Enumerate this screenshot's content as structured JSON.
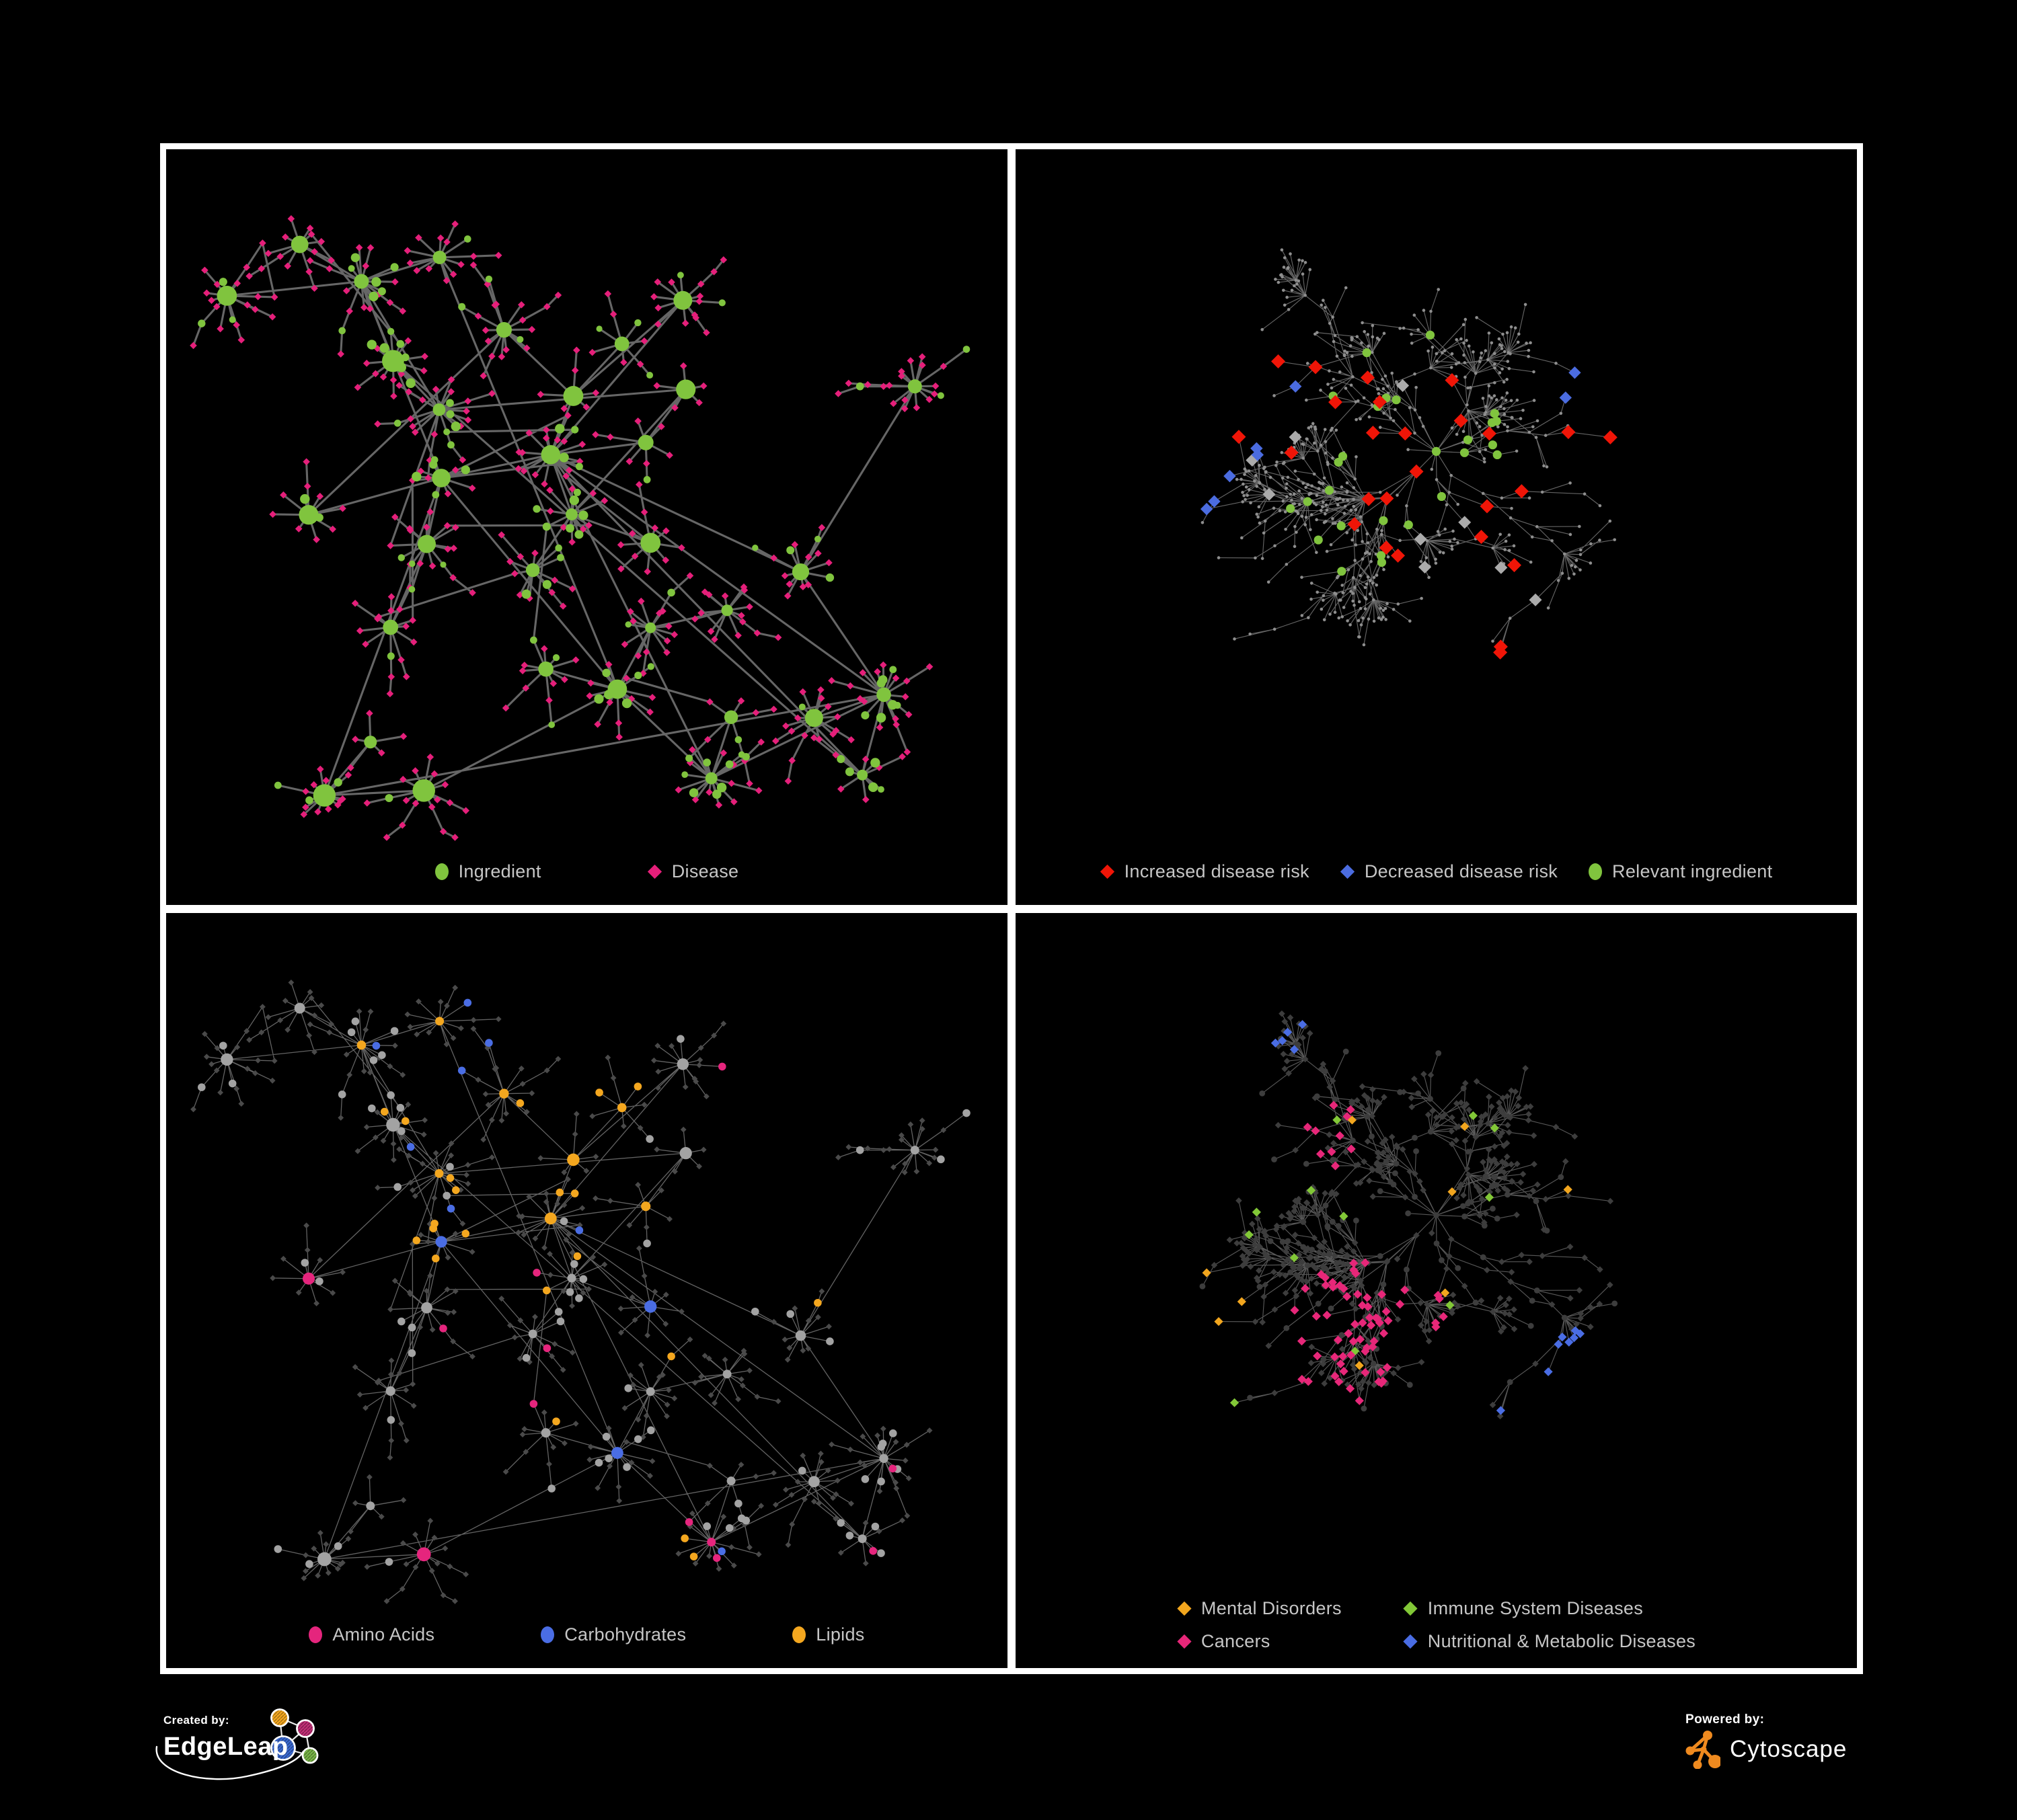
{
  "page": {
    "background": "#000000",
    "frame_color": "#ffffff"
  },
  "footer": {
    "created_by": "Created by:",
    "created_brand": "EdgeLeap",
    "powered_by": "Powered by:",
    "powered_brand": "Cytoscape"
  },
  "panels": [
    {
      "id": "ingredient-disease",
      "layout": "hairball",
      "seed": 7,
      "palette": {
        "ingredient": "#80c43e",
        "disease": "#e51f7a"
      },
      "edge": {
        "color": "#6b6b6b",
        "width": 3.1,
        "opacity": 0.95
      },
      "legend": {
        "style": "row-wide",
        "items": [
          {
            "label": "Ingredient",
            "shape": "circle",
            "color": "#80c43e"
          },
          {
            "label": "Disease",
            "shape": "diamond",
            "color": "#e51f7a"
          }
        ]
      }
    },
    {
      "id": "disease-risk",
      "layout": "tree",
      "seed": 23,
      "palette": {
        "increased": "#f01507",
        "decreased": "#4b6ce0",
        "neutral": "#ababab",
        "ingredient": "#80c43e",
        "base": "#8e8e8e"
      },
      "edge": {
        "color": "#6f6f6f",
        "width": 1.15,
        "opacity": 0.9
      },
      "legend": {
        "style": "row",
        "items": [
          {
            "label": "Increased disease risk",
            "shape": "diamond",
            "color": "#f01507"
          },
          {
            "label": "Decreased disease risk",
            "shape": "diamond",
            "color": "#4b6ce0"
          },
          {
            "label": "Relevant ingredient",
            "shape": "circle",
            "color": "#80c43e"
          }
        ]
      }
    },
    {
      "id": "nutrient-categories",
      "layout": "hairball",
      "seed": 7,
      "palette": {
        "amino": "#e5257d",
        "carb": "#4a6de4",
        "lipid": "#f4a71f",
        "base": "#a3a3a3",
        "disease": "#4a4a4a"
      },
      "edge": {
        "color": "#8d8d8d",
        "width": 1.3,
        "opacity": 0.7
      },
      "legend": {
        "style": "row-wide",
        "items": [
          {
            "label": "Amino Acids",
            "shape": "circle",
            "color": "#e5257d"
          },
          {
            "label": "Carbohydrates",
            "shape": "circle",
            "color": "#4a6de4"
          },
          {
            "label": "Lipids",
            "shape": "circle",
            "color": "#f4a71f"
          }
        ]
      }
    },
    {
      "id": "disease-categories",
      "layout": "tree",
      "seed": 23,
      "palette": {
        "mental": "#f2a61e",
        "immune": "#82c837",
        "cancer": "#e72779",
        "metabolic": "#4a6de4",
        "base": "#3d3d3d"
      },
      "edge": {
        "color": "#606060",
        "width": 1.15,
        "opacity": 0.9
      },
      "legend": {
        "style": "grid-2",
        "items": [
          {
            "label": "Mental Disorders",
            "shape": "diamond",
            "color": "#f2a61e"
          },
          {
            "label": "Immune System Diseases",
            "shape": "diamond",
            "color": "#82c837"
          },
          {
            "label": "Cancers",
            "shape": "diamond",
            "color": "#e72779"
          },
          {
            "label": "Nutritional & Metabolic Diseases",
            "shape": "diamond",
            "color": "#4a6de4"
          }
        ]
      }
    }
  ]
}
